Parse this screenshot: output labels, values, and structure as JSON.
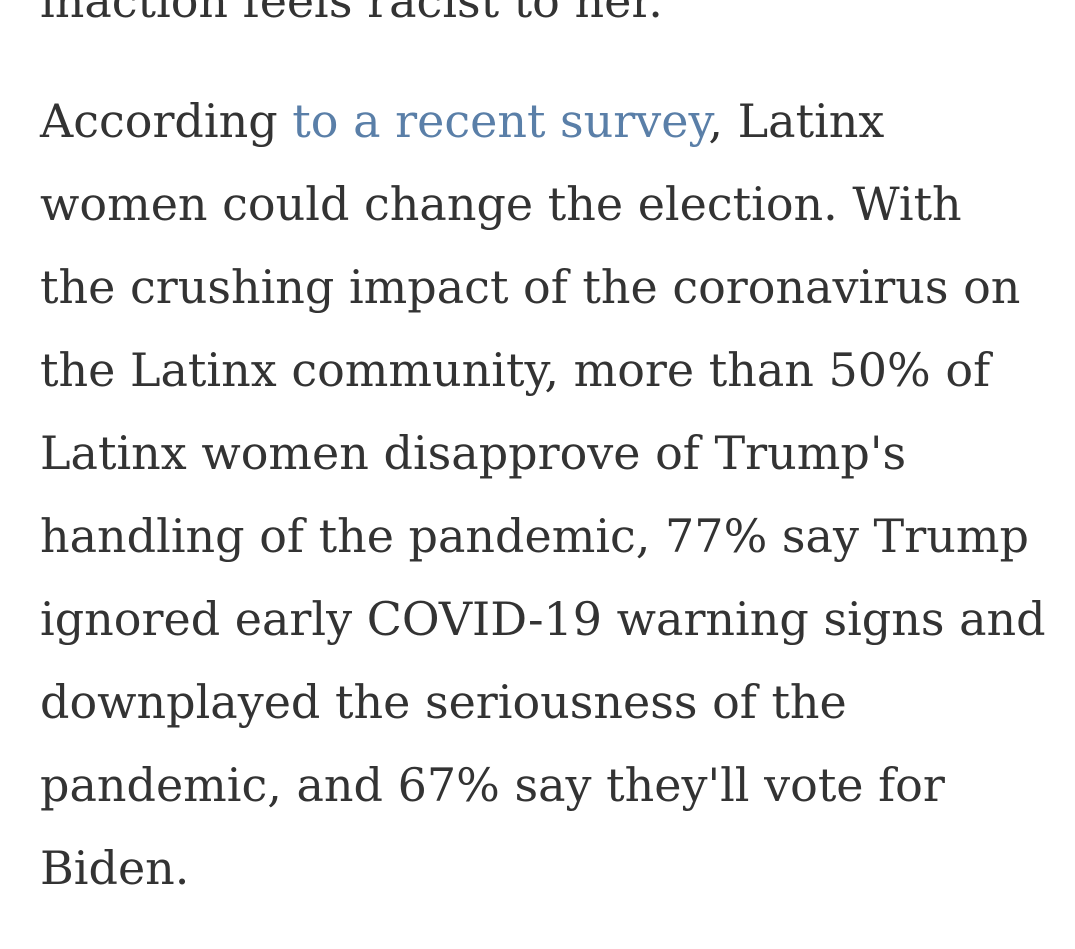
{
  "previous_paragraph": {
    "last_line": "inaction feels racist to her.\""
  },
  "paragraph": {
    "lead_text": "According ",
    "link_text": "to a recent survey",
    "after_link": ", Latinx",
    "lines": [
      "women could change the election. With",
      "the crushing impact of the coronavirus on",
      "the Latinx community, more than 50% of",
      "Latinx women disapprove of Trump's",
      "handling of the pandemic, 77% say Trump",
      "ignored early COVID-19 warning signs and",
      "downplayed the seriousness of the",
      "pandemic, and 67% say they'll vote for",
      "Biden."
    ]
  },
  "colors": {
    "text": "#333333",
    "link": "#5a7fa8",
    "background": "#ffffff"
  }
}
